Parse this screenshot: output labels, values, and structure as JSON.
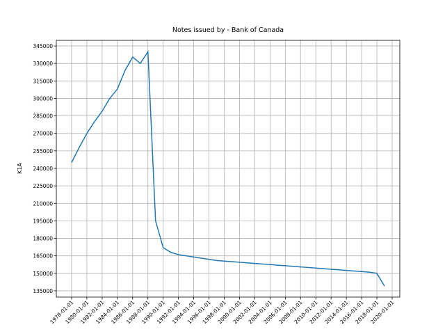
{
  "chart_data": {
    "type": "line",
    "title": "Notes issued by - Bank of Canada",
    "y_label": "K1A",
    "x": [
      "1978-01-01",
      "1979-01-01",
      "1980-01-01",
      "1981-01-01",
      "1982-01-01",
      "1983-01-01",
      "1984-01-01",
      "1985-01-01",
      "1986-01-01",
      "1987-01-01",
      "1988-01-01",
      "1989-01-01",
      "1990-01-01",
      "1991-01-01",
      "1992-01-01",
      "1993-01-01",
      "1994-01-01",
      "1995-01-01",
      "1996-01-01",
      "1997-01-01",
      "1998-01-01",
      "1999-01-01",
      "2000-01-01",
      "2001-01-01",
      "2002-01-01",
      "2003-01-01",
      "2004-01-01",
      "2005-01-01",
      "2006-01-01",
      "2007-01-01",
      "2008-01-01",
      "2009-01-01",
      "2010-01-01",
      "2011-01-01",
      "2012-01-01",
      "2013-01-01",
      "2014-01-01",
      "2015-01-01",
      "2016-01-01",
      "2017-01-01",
      "2018-01-01",
      "2019-01-01"
    ],
    "series": [
      {
        "name": "Notes issued",
        "color": "#1f77b4",
        "values": [
          245000,
          258000,
          270000,
          280000,
          289000,
          300000,
          308000,
          324000,
          335500,
          330000,
          340000,
          195000,
          172000,
          168000,
          166000,
          165000,
          164000,
          163000,
          162000,
          161000,
          160500,
          160000,
          159500,
          159000,
          158500,
          158000,
          157500,
          157000,
          156500,
          156000,
          155500,
          155000,
          154500,
          154000,
          153500,
          153000,
          152500,
          152000,
          151500,
          151000,
          150000,
          139000
        ]
      }
    ],
    "xlim": [
      "1976-01-01",
      "2021-01-01"
    ],
    "xticks": [
      "1978-01-01",
      "1980-01-01",
      "1982-01-01",
      "1984-01-01",
      "1986-01-01",
      "1988-01-01",
      "1990-01-01",
      "1992-01-01",
      "1994-01-01",
      "1996-01-01",
      "1998-01-01",
      "2000-01-01",
      "2002-01-01",
      "2004-01-01",
      "2006-01-01",
      "2008-01-01",
      "2010-01-01",
      "2012-01-01",
      "2014-01-01",
      "2016-01-01",
      "2018-01-01",
      "2020-01-01"
    ],
    "ylim": [
      129600,
      349800
    ],
    "yticks": [
      135000,
      150000,
      165000,
      180000,
      195000,
      210000,
      225000,
      240000,
      255000,
      270000,
      285000,
      300000,
      315000,
      330000,
      345000
    ],
    "grid": true
  }
}
